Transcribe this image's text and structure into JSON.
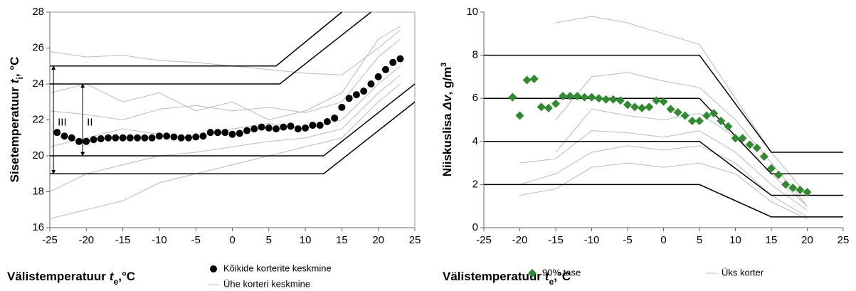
{
  "chart_data": [
    {
      "type": "scatter",
      "y_label": {
        "text": "Sisetemperatuur",
        "symbol": "t",
        "sub": "i",
        "unit": ", °C"
      },
      "x_label": {
        "text": "Välistemperatuur",
        "symbol": "t",
        "sub": "e",
        "unit": ",°C"
      },
      "xlim": [
        -25,
        25
      ],
      "ylim": [
        16,
        28
      ],
      "xticks": [
        -25,
        -20,
        -15,
        -10,
        -5,
        0,
        5,
        10,
        15,
        20,
        25
      ],
      "yticks": [
        16,
        18,
        20,
        22,
        24,
        26,
        28
      ],
      "limit_color": "#000000",
      "limit_lines": [
        {
          "x": [
            -25,
            6,
            15
          ],
          "values": [
            25,
            25,
            28
          ]
        },
        {
          "x": [
            -25,
            6.5,
            19
          ],
          "values": [
            24,
            24,
            28
          ]
        },
        {
          "x": [
            -25,
            12.5,
            25
          ],
          "values": [
            20,
            20,
            24
          ]
        },
        {
          "x": [
            -25,
            12.5,
            25
          ],
          "values": [
            19,
            19,
            23
          ]
        }
      ],
      "series": [
        {
          "name": "Kõikide korterite keskmine",
          "color": "#000000",
          "marker": "circle",
          "x": [
            -24,
            -23,
            -22,
            -21,
            -20,
            -19,
            -18,
            -17,
            -16,
            -15,
            -14,
            -13,
            -12,
            -11,
            -10,
            -9,
            -8,
            -7,
            -6,
            -5,
            -4,
            -3,
            -2,
            -1,
            0,
            1,
            2,
            3,
            4,
            5,
            6,
            7,
            8,
            9,
            10,
            11,
            12,
            13,
            14,
            15,
            16,
            17,
            18,
            19,
            20,
            21,
            22,
            23
          ],
          "values": [
            21.3,
            21.1,
            21.0,
            20.8,
            20.8,
            20.9,
            20.95,
            21.0,
            21.0,
            21.0,
            21.0,
            21.0,
            21.0,
            21.0,
            21.1,
            21.1,
            21.05,
            21.0,
            21.0,
            21.05,
            21.1,
            21.3,
            21.3,
            21.3,
            21.2,
            21.25,
            21.4,
            21.5,
            21.6,
            21.55,
            21.5,
            21.6,
            21.65,
            21.5,
            21.55,
            21.7,
            21.7,
            21.9,
            22.1,
            22.7,
            23.2,
            23.4,
            23.6,
            24.0,
            24.4,
            24.8,
            25.2,
            25.4
          ]
        },
        {
          "name": "Ühe korteri keskmine",
          "color": "#bbbbbb",
          "x": [
            -25,
            -20,
            -15,
            -10,
            -5,
            0,
            5,
            10,
            15,
            20,
            23
          ],
          "lines": [
            [
              25.8,
              25.5,
              25.6,
              25.3,
              25.2,
              25.0,
              24.8,
              24.6,
              24.5,
              26.0,
              27.0
            ],
            [
              22.5,
              22.3,
              22.0,
              22.6,
              22.8,
              22.5,
              22.7,
              22.4,
              23.0,
              25.5,
              26.5
            ],
            [
              20.5,
              21.0,
              21.5,
              21.2,
              21.0,
              21.5,
              21.8,
              21.5,
              22.0,
              24.0,
              25.0
            ],
            [
              18.0,
              19.0,
              19.5,
              20.0,
              20.2,
              20.5,
              20.8,
              21.0,
              21.5,
              23.5,
              24.5
            ],
            [
              16.5,
              17.0,
              17.5,
              18.5,
              19.0,
              19.5,
              20.0,
              20.5,
              21.0,
              23.0,
              24.0
            ],
            [
              23.5,
              24.0,
              23.0,
              23.5,
              22.5,
              23.0,
              22.0,
              22.5,
              23.5,
              26.5,
              27.2
            ]
          ]
        }
      ],
      "annotations": [
        {
          "text": "III",
          "x": -24.5,
          "y": [
            19,
            25
          ]
        },
        {
          "text": "II",
          "x": -20.5,
          "y": [
            20,
            24
          ]
        }
      ]
    },
    {
      "type": "scatter",
      "y_label": {
        "text": "Niiskuslisa",
        "symbol": "Δv",
        "unit": ", g/m",
        "sup": "3"
      },
      "x_label": {
        "text": "Välistemperatuur",
        "symbol": "t",
        "sub": "e",
        "unit": ",°C"
      },
      "xlim": [
        -25,
        25
      ],
      "ylim": [
        0,
        10
      ],
      "xticks": [
        -25,
        -20,
        -15,
        -10,
        -5,
        0,
        5,
        10,
        15,
        20,
        25
      ],
      "yticks": [
        0,
        2,
        4,
        6,
        8,
        10
      ],
      "limit_color": "#000000",
      "limit_lines": [
        {
          "x": [
            -25,
            5,
            15,
            25
          ],
          "values": [
            8,
            8,
            3.5,
            3.5
          ]
        },
        {
          "x": [
            -25,
            5,
            15,
            25
          ],
          "values": [
            6,
            6,
            2.5,
            2.5
          ]
        },
        {
          "x": [
            -25,
            5,
            15,
            25
          ],
          "values": [
            4,
            4,
            1.5,
            1.5
          ]
        },
        {
          "x": [
            -25,
            5,
            15,
            25
          ],
          "values": [
            2,
            2,
            0.5,
            0.5
          ]
        }
      ],
      "series": [
        {
          "name": "90% tase",
          "color": "#2e8b2e",
          "marker": "diamond",
          "x": [
            -21,
            -20,
            -19,
            -18,
            -17,
            -16,
            -15,
            -14,
            -13,
            -12,
            -11,
            -10,
            -9,
            -8,
            -7,
            -6,
            -5,
            -4,
            -3,
            -2,
            -1,
            0,
            1,
            2,
            3,
            4,
            5,
            6,
            7,
            8,
            9,
            10,
            11,
            12,
            13,
            14,
            15,
            16,
            17,
            18,
            19,
            20
          ],
          "values": [
            6.05,
            5.2,
            6.85,
            6.9,
            5.6,
            5.55,
            5.75,
            6.1,
            6.1,
            6.1,
            6.05,
            6.05,
            6.0,
            5.95,
            5.95,
            5.9,
            5.7,
            5.6,
            5.55,
            5.6,
            5.9,
            5.85,
            5.5,
            5.35,
            5.2,
            4.95,
            4.95,
            5.2,
            5.3,
            4.95,
            4.7,
            4.15,
            4.15,
            3.85,
            3.7,
            3.3,
            2.75,
            2.45,
            2.0,
            1.85,
            1.75,
            1.65
          ]
        },
        {
          "name": "Üks korter",
          "color": "#bbbbbb",
          "x": [
            -20,
            -15,
            -10,
            -5,
            0,
            5,
            10,
            15,
            20
          ],
          "lines": [
            [
              null,
              9.5,
              9.8,
              9.5,
              9.0,
              8.5,
              6.0,
              3.5,
              1.5
            ],
            [
              null,
              5.0,
              7.0,
              7.2,
              6.8,
              6.5,
              5.0,
              3.0,
              1.0
            ],
            [
              3.0,
              3.2,
              4.5,
              4.4,
              4.2,
              4.5,
              3.5,
              2.0,
              0.8
            ],
            [
              2.0,
              2.5,
              3.5,
              3.8,
              3.6,
              3.8,
              3.0,
              1.5,
              0.5
            ],
            [
              1.5,
              1.8,
              2.8,
              3.0,
              2.8,
              3.0,
              2.5,
              1.2,
              0.4
            ],
            [
              null,
              3.5,
              5.5,
              5.2,
              5.0,
              5.3,
              4.2,
              2.5,
              1.0
            ]
          ]
        }
      ]
    }
  ]
}
